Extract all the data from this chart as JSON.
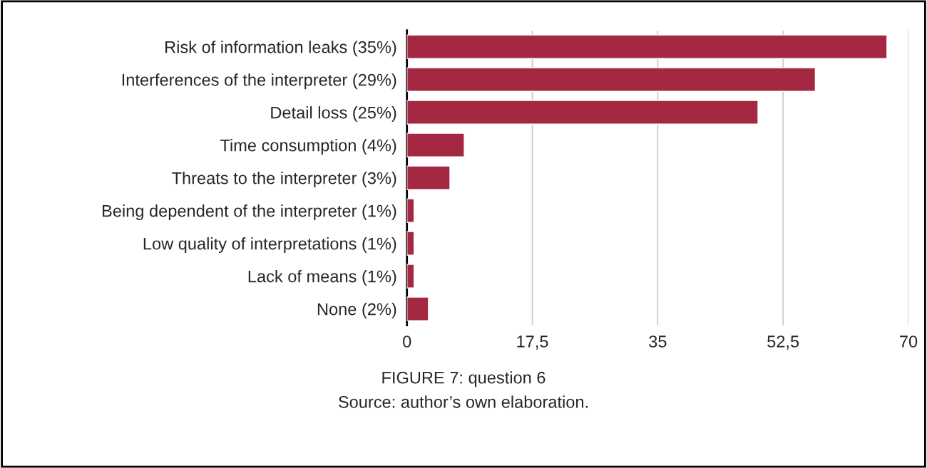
{
  "chart_data": {
    "type": "bar",
    "orientation": "horizontal",
    "categories": [
      "Risk of information leaks (35%)",
      "Interferences of the interpreter (29%)",
      "Detail loss (25%)",
      "Time consumption (4%)",
      "Threats to the interpreter (3%)",
      "Being dependent of the interpreter (1%)",
      "Low quality of interpretations (1%)",
      "Lack of means (1%)",
      "None (2%)"
    ],
    "values": [
      67,
      57,
      49,
      8,
      6,
      1,
      1,
      1,
      3
    ],
    "color": "#a52842",
    "xlim": [
      0,
      70
    ],
    "xticks": [
      0,
      {
        "value": 17.5,
        "label": "17,5"
      },
      35,
      {
        "value": 52.5,
        "label": "52,5"
      },
      70
    ],
    "grid": "x",
    "annotations": [
      "FIGURE 7: question 6",
      "Source: author’s own elaboration."
    ]
  }
}
